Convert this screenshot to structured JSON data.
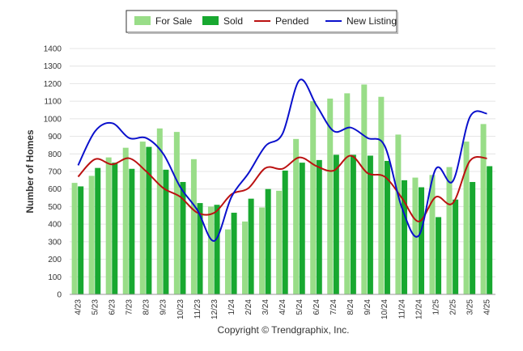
{
  "chart_data": {
    "type": "bar",
    "title": "",
    "xlabel": "",
    "ylabel": "Number of Homes",
    "ylim": [
      0,
      1400
    ],
    "yticks": [
      0,
      100,
      200,
      300,
      400,
      500,
      600,
      700,
      800,
      900,
      1000,
      1100,
      1200,
      1300,
      1400
    ],
    "grid": true,
    "legend_position": "top-center",
    "categories": [
      "4/23",
      "5/23",
      "6/23",
      "7/23",
      "8/23",
      "9/23",
      "10/23",
      "11/23",
      "12/23",
      "1/24",
      "2/24",
      "3/24",
      "4/24",
      "5/24",
      "6/24",
      "7/24",
      "8/24",
      "9/24",
      "10/24",
      "11/24",
      "12/24",
      "1/25",
      "2/25",
      "3/25",
      "4/25"
    ],
    "series": [
      {
        "name": "For Sale",
        "kind": "bar",
        "color": "#99dd88",
        "values": [
          635,
          675,
          780,
          835,
          870,
          945,
          925,
          770,
          500,
          370,
          415,
          495,
          590,
          885,
          1100,
          1115,
          1145,
          1195,
          1125,
          910,
          665,
          680,
          725,
          870,
          970
        ]
      },
      {
        "name": "Sold",
        "kind": "bar",
        "color": "#18a830",
        "values": [
          615,
          720,
          750,
          715,
          840,
          710,
          640,
          520,
          510,
          465,
          545,
          600,
          705,
          750,
          765,
          795,
          795,
          790,
          760,
          650,
          610,
          440,
          540,
          640,
          730
        ]
      },
      {
        "name": "Pended",
        "kind": "line",
        "color": "#bb1111",
        "values": [
          670,
          770,
          740,
          775,
          700,
          605,
          555,
          465,
          465,
          570,
          605,
          720,
          715,
          780,
          730,
          705,
          790,
          690,
          670,
          550,
          415,
          555,
          520,
          760,
          775
        ]
      },
      {
        "name": "New Listing",
        "kind": "line",
        "color": "#0a10cc",
        "values": [
          735,
          930,
          975,
          890,
          890,
          800,
          610,
          480,
          305,
          555,
          690,
          845,
          915,
          1220,
          1075,
          930,
          950,
          890,
          845,
          495,
          335,
          715,
          645,
          1010,
          1030
        ]
      }
    ]
  },
  "footer": {
    "copyright": "Copyright © Trendgraphix, Inc."
  }
}
